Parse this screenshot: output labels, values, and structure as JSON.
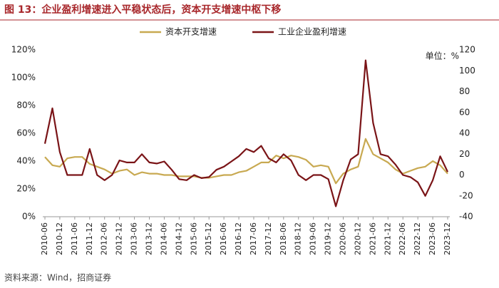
{
  "chart_data": {
    "type": "line",
    "title": "图 13：企业盈利增速进入平稳状态后，资本开支增速中枢下移",
    "unit_label": "单位：%",
    "source": "资料来源：Wind，招商证券",
    "categories": [
      "2010-06",
      null,
      "2010-12",
      null,
      "2011-06",
      null,
      "2011-12",
      null,
      "2012-06",
      null,
      "2012-12",
      null,
      "2013-06",
      null,
      "2013-12",
      null,
      "2014-06",
      null,
      "2014-12",
      null,
      "2015-06",
      null,
      "2015-12",
      null,
      "2016-06",
      null,
      "2016-12",
      null,
      "2017-06",
      null,
      "2017-12",
      null,
      "2018-06",
      null,
      "2018-12",
      null,
      "2019-06",
      null,
      "2019-12",
      null,
      "2020-06",
      null,
      "2020-12",
      null,
      "2021-06",
      null,
      "2021-12",
      null,
      "2022-06",
      null,
      "2022-12",
      null,
      "2023-06",
      null,
      "2023-12"
    ],
    "series": [
      {
        "name": "资本开支增速",
        "color": "#c8a951",
        "values": [
          43,
          37,
          36,
          42,
          43,
          43,
          38,
          36,
          34,
          31,
          33,
          34,
          30,
          32,
          31,
          31,
          30,
          30,
          29,
          29,
          29,
          28,
          28,
          29,
          30,
          30,
          32,
          33,
          36,
          39,
          39,
          44,
          42,
          44,
          43,
          41,
          36,
          37,
          36,
          24,
          31,
          34,
          36,
          56,
          45,
          42,
          39,
          34,
          31,
          33,
          35,
          36,
          40,
          37,
          31
        ]
      },
      {
        "name": "工业企业盈利增速",
        "color": "#7a1417",
        "axis": "y2",
        "values": [
          30,
          64,
          22,
          0,
          0,
          0,
          25,
          0,
          -5,
          0,
          14,
          12,
          12,
          20,
          12,
          11,
          13,
          5,
          -4,
          -5,
          0,
          -3,
          -2,
          5,
          8,
          13,
          18,
          25,
          22,
          28,
          16,
          12,
          20,
          14,
          0,
          -5,
          0,
          0,
          -4,
          -30,
          -5,
          15,
          20,
          110,
          50,
          20,
          18,
          10,
          0,
          -2,
          -7,
          -20,
          -5,
          18,
          3
        ]
      }
    ],
    "ylim": [
      0,
      120
    ],
    "yticks": [
      {
        "value": 0,
        "label": "0%"
      },
      {
        "value": 20,
        "label": "20%"
      },
      {
        "value": 40,
        "label": "40%"
      },
      {
        "value": 60,
        "label": "60%"
      },
      {
        "value": 80,
        "label": "80%"
      },
      {
        "value": 100,
        "label": "100%"
      },
      {
        "value": 120,
        "label": "120%"
      }
    ],
    "y2lim": [
      -40,
      120
    ],
    "y2ticks": [
      -40,
      -20,
      0,
      20,
      40,
      60,
      80,
      100,
      120
    ],
    "legend": "top"
  }
}
